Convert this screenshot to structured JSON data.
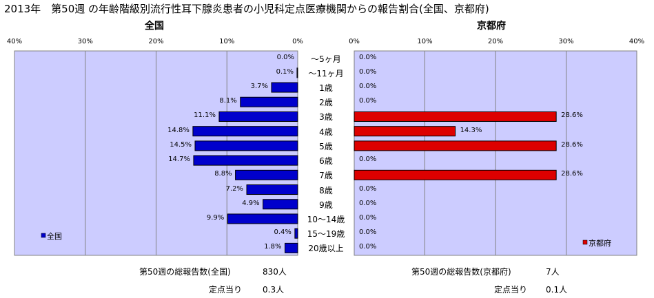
{
  "title": "2013年　第50週 の年齢階級別流行性耳下腺炎患者の小児科定点医療機関からの報告割合(全国、京都府)",
  "colors": {
    "plot_bg": "#ccccff",
    "left_bar": "#0000cc",
    "right_bar": "#dd0000",
    "grid": "#808080"
  },
  "chart_data": [
    {
      "type": "bar",
      "orientation": "horizontal",
      "title": "全国",
      "categories": [
        "～5ヶ月",
        "～11ヶ月",
        "1歳",
        "2歳",
        "3歳",
        "4歳",
        "5歳",
        "6歳",
        "7歳",
        "8歳",
        "9歳",
        "10～14歳",
        "15～19歳",
        "20歳以上"
      ],
      "series": [
        {
          "name": "全国",
          "values": [
            0.0,
            0.1,
            3.7,
            8.1,
            11.1,
            14.8,
            14.5,
            14.7,
            8.8,
            7.2,
            4.9,
            9.9,
            0.4,
            1.8
          ]
        }
      ],
      "value_labels": [
        "0.0%",
        "0.1%",
        "3.7%",
        "8.1%",
        "11.1%",
        "14.8%",
        "14.5%",
        "14.7%",
        "8.8%",
        "7.2%",
        "4.9%",
        "9.9%",
        "0.4%",
        "1.8%"
      ],
      "xlim": [
        0,
        40
      ],
      "x_direction": "reversed",
      "ticks": [
        "40%",
        "30%",
        "20%",
        "10%",
        "0%"
      ],
      "legend": "bottom-left",
      "grid": true
    },
    {
      "type": "bar",
      "orientation": "horizontal",
      "title": "京都府",
      "categories": [
        "～5ヶ月",
        "～11ヶ月",
        "1歳",
        "2歳",
        "3歳",
        "4歳",
        "5歳",
        "6歳",
        "7歳",
        "8歳",
        "9歳",
        "10～14歳",
        "15～19歳",
        "20歳以上"
      ],
      "series": [
        {
          "name": "京都府",
          "values": [
            0.0,
            0.0,
            0.0,
            0.0,
            28.6,
            14.3,
            28.6,
            0.0,
            28.6,
            0.0,
            0.0,
            0.0,
            0.0,
            0.0
          ]
        }
      ],
      "value_labels": [
        "0.0%",
        "0.0%",
        "0.0%",
        "0.0%",
        "28.6%",
        "14.3%",
        "28.6%",
        "0.0%",
        "28.6%",
        "0.0%",
        "0.0%",
        "0.0%",
        "0.0%",
        "0.0%"
      ],
      "xlim": [
        0,
        40
      ],
      "ticks": [
        "0%",
        "10%",
        "20%",
        "30%",
        "40%"
      ],
      "legend": "bottom-right",
      "grid": true
    }
  ],
  "footer": {
    "left": {
      "total_label": "第50週の総報告数(全国)",
      "total_value": "830人",
      "per_label": "定点当り",
      "per_value": "0.3人"
    },
    "right": {
      "total_label": "第50週の総報告数(京都府)",
      "total_value": "7人",
      "per_label": "定点当り",
      "per_value": "0.1人"
    }
  }
}
